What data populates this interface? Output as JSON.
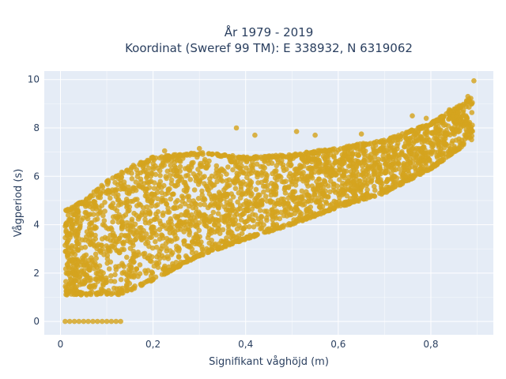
{
  "chart_data": {
    "type": "scatter",
    "title_line1": "År 1979 - 2019",
    "title_line2": "Koordinat (Sweref 99 TM): E 338932, N 6319062",
    "xlabel": "Signifikant våghöjd (m)",
    "ylabel": "Vågperiod (s)",
    "xlim": [
      -0.035,
      0.935
    ],
    "ylim": [
      -0.55,
      10.35
    ],
    "x_ticks": [
      0,
      0.2,
      0.4,
      0.6,
      0.8
    ],
    "x_tick_labels": [
      "0",
      "0,2",
      "0,4",
      "0,6",
      "0,8"
    ],
    "y_ticks": [
      0,
      2,
      4,
      6,
      8,
      10
    ],
    "y_tick_labels": [
      "0",
      "2",
      "4",
      "6",
      "8",
      "10"
    ],
    "grid": true,
    "background_color": "#e5ecf6",
    "marker_color": "#d4a31e",
    "point_cloud": {
      "description_free_envelope": true,
      "x_range": [
        0.01,
        0.89
      ],
      "lower_bound": [
        [
          0.01,
          1.1
        ],
        [
          0.13,
          1.1
        ],
        [
          0.2,
          1.7
        ],
        [
          0.3,
          2.7
        ],
        [
          0.4,
          3.4
        ],
        [
          0.5,
          4.0
        ],
        [
          0.6,
          4.7
        ],
        [
          0.7,
          5.3
        ],
        [
          0.8,
          6.3
        ],
        [
          0.89,
          7.5
        ]
      ],
      "upper_bound": [
        [
          0.01,
          4.6
        ],
        [
          0.05,
          5.0
        ],
        [
          0.1,
          5.8
        ],
        [
          0.15,
          6.4
        ],
        [
          0.2,
          6.8
        ],
        [
          0.3,
          7.0
        ],
        [
          0.4,
          6.8
        ],
        [
          0.5,
          6.9
        ],
        [
          0.6,
          7.2
        ],
        [
          0.7,
          7.5
        ],
        [
          0.8,
          8.2
        ],
        [
          0.89,
          9.3
        ]
      ],
      "zero_points_x": [
        0.01,
        0.02,
        0.03,
        0.04,
        0.05,
        0.06,
        0.07,
        0.08,
        0.09,
        0.1,
        0.11,
        0.12,
        0.13
      ],
      "zero_points_y": 0,
      "outliers": [
        [
          0.893,
          9.95
        ],
        [
          0.88,
          9.3
        ],
        [
          0.76,
          8.5
        ],
        [
          0.225,
          7.05
        ],
        [
          0.42,
          7.7
        ],
        [
          0.51,
          7.85
        ],
        [
          0.55,
          7.7
        ],
        [
          0.38,
          8.0
        ],
        [
          0.3,
          7.15
        ],
        [
          0.65,
          7.75
        ],
        [
          0.79,
          8.4
        ],
        [
          0.84,
          8.75
        ]
      ]
    }
  }
}
